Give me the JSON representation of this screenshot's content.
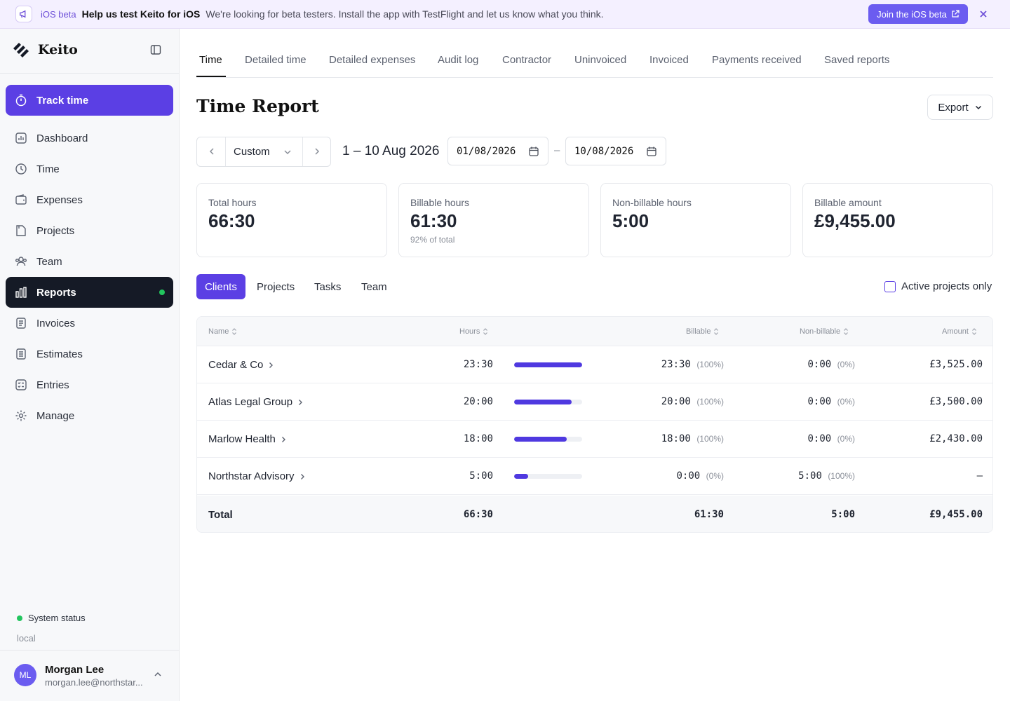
{
  "banner": {
    "tag": "iOS beta",
    "headline": "Help us test Keito for iOS",
    "message": "We're looking for beta testers. Install the app with TestFlight and let us know what you think.",
    "cta": "Join the iOS beta"
  },
  "brand": {
    "name": "Keito"
  },
  "sidebar": {
    "primary": "Track time",
    "items": [
      {
        "label": "Dashboard",
        "icon": "dashboard-icon"
      },
      {
        "label": "Time",
        "icon": "clock-icon"
      },
      {
        "label": "Expenses",
        "icon": "wallet-icon"
      },
      {
        "label": "Projects",
        "icon": "folder-icon"
      },
      {
        "label": "Team",
        "icon": "users-icon"
      },
      {
        "label": "Reports",
        "icon": "bar-chart-icon",
        "active": true
      },
      {
        "label": "Invoices",
        "icon": "invoice-icon"
      },
      {
        "label": "Estimates",
        "icon": "estimate-icon"
      },
      {
        "label": "Entries",
        "icon": "entries-icon"
      },
      {
        "label": "Manage",
        "icon": "gear-icon"
      }
    ],
    "system_status": "System status",
    "environment": "local"
  },
  "user": {
    "initials": "ML",
    "name": "Morgan Lee",
    "email": "morgan.lee@northstar..."
  },
  "tabs": [
    "Time",
    "Detailed time",
    "Detailed expenses",
    "Audit log",
    "Contractor",
    "Uninvoiced",
    "Invoiced",
    "Payments received",
    "Saved reports"
  ],
  "page": {
    "title": "Time Report",
    "export": "Export"
  },
  "filters": {
    "period": "Custom",
    "range_label": "1 – 10 Aug 2026",
    "from": "01/08/2026",
    "to": "10/08/2026",
    "separator": "–"
  },
  "summary": [
    {
      "label": "Total hours",
      "value": "66:30",
      "sub": ""
    },
    {
      "label": "Billable hours",
      "value": "61:30",
      "sub": "92% of total"
    },
    {
      "label": "Non-billable hours",
      "value": "5:00",
      "sub": ""
    },
    {
      "label": "Billable amount",
      "value": "£9,455.00",
      "sub": ""
    }
  ],
  "subtabs": [
    "Clients",
    "Projects",
    "Tasks",
    "Team"
  ],
  "active_only": "Active projects only",
  "table": {
    "headers": {
      "name": "Name",
      "hours": "Hours",
      "billable": "Billable",
      "nonbillable": "Non-billable",
      "amount": "Amount"
    },
    "rows": [
      {
        "name": "Cedar & Co",
        "hours": "23:30",
        "bar": 1.0,
        "billable": "23:30",
        "billable_pct": "(100%)",
        "nonbillable": "0:00",
        "nonbillable_pct": "(0%)",
        "amount": "£3,525.00"
      },
      {
        "name": "Atlas Legal Group",
        "hours": "20:00",
        "bar": 0.85,
        "billable": "20:00",
        "billable_pct": "(100%)",
        "nonbillable": "0:00",
        "nonbillable_pct": "(0%)",
        "amount": "£3,500.00"
      },
      {
        "name": "Marlow Health",
        "hours": "18:00",
        "bar": 0.77,
        "billable": "18:00",
        "billable_pct": "(100%)",
        "nonbillable": "0:00",
        "nonbillable_pct": "(0%)",
        "amount": "£2,430.00"
      },
      {
        "name": "Northstar Advisory",
        "hours": "5:00",
        "bar": 0.21,
        "billable": "0:00",
        "billable_pct": "(0%)",
        "nonbillable": "5:00",
        "nonbillable_pct": "(100%)",
        "amount": "–"
      }
    ],
    "total": {
      "label": "Total",
      "hours": "66:30",
      "billable": "61:30",
      "nonbillable": "5:00",
      "amount": "£9,455.00"
    }
  },
  "colors": {
    "accent": "#5b3fe4",
    "active_nav": "#151a26",
    "status_green": "#22c55e"
  }
}
